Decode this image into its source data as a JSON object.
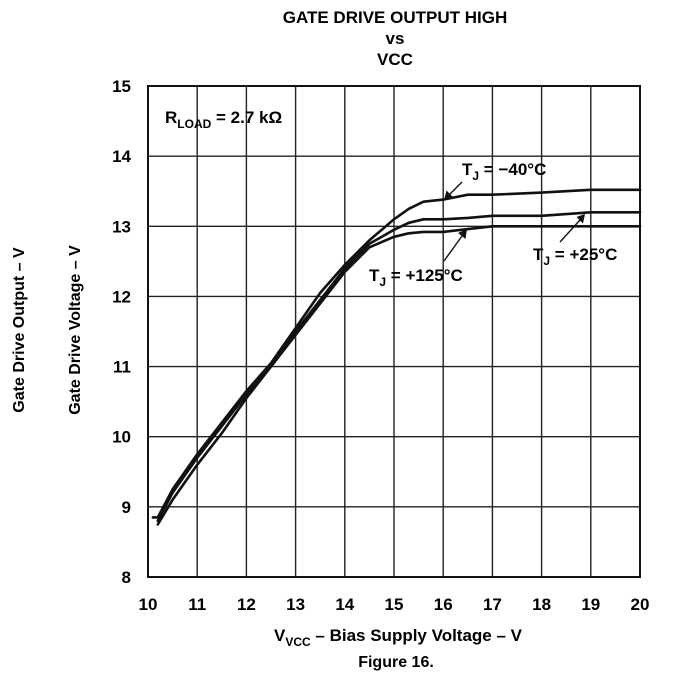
{
  "chart_data": {
    "type": "line",
    "title_lines": [
      "GATE DRIVE OUTPUT HIGH",
      "vs",
      "VCC"
    ],
    "xlabel": {
      "main": "V",
      "sub": "VCC",
      "rest": " – Bias Supply Voltage – V"
    },
    "ylabel_inner": "Gate Drive Voltage – V",
    "ylabel_outer": "Gate Drive Output – V",
    "caption": "Figure 16.",
    "xlim": [
      10,
      20
    ],
    "ylim": [
      8,
      15
    ],
    "xticks": [
      10,
      11,
      12,
      13,
      14,
      15,
      16,
      17,
      18,
      19,
      20
    ],
    "yticks": [
      8,
      9,
      10,
      11,
      12,
      13,
      14,
      15
    ],
    "grid": true,
    "condition": {
      "main": "R",
      "sub": "LOAD",
      "rest": " = 2.7 kΩ"
    },
    "series": [
      {
        "name": "T_J = −40°C",
        "label": {
          "main": "T",
          "sub": "J",
          "rest": " = −40°C"
        },
        "x": [
          10.1,
          10.2,
          10.5,
          11,
          11.5,
          12,
          12.5,
          13,
          13.5,
          14,
          14.5,
          15,
          15.3,
          15.6,
          16,
          16.5,
          17,
          18,
          19,
          20
        ],
        "y": [
          8.85,
          8.85,
          9.25,
          9.75,
          10.2,
          10.65,
          11.05,
          11.55,
          12.05,
          12.45,
          12.8,
          13.1,
          13.25,
          13.35,
          13.38,
          13.45,
          13.45,
          13.48,
          13.52,
          13.52
        ]
      },
      {
        "name": "T_J = +25°C",
        "label": {
          "main": "T",
          "sub": "J",
          "rest": " = +25°C"
        },
        "x": [
          10.2,
          10.5,
          11,
          11.5,
          12,
          12.5,
          13,
          13.5,
          14,
          14.5,
          15,
          15.3,
          15.6,
          16,
          16.5,
          17,
          18,
          19,
          20
        ],
        "y": [
          8.8,
          9.2,
          9.7,
          10.15,
          10.6,
          11.0,
          11.5,
          11.95,
          12.4,
          12.75,
          12.95,
          13.05,
          13.1,
          13.1,
          13.12,
          13.15,
          13.15,
          13.2,
          13.2
        ]
      },
      {
        "name": "T_J = +125°C",
        "label": {
          "main": "T",
          "sub": "J",
          "rest": " = +125°C"
        },
        "x": [
          10.2,
          10.5,
          11,
          11.5,
          12,
          12.5,
          13,
          13.5,
          14,
          14.5,
          15,
          15.3,
          15.6,
          16,
          16.5,
          17,
          18,
          19,
          20
        ],
        "y": [
          8.75,
          9.1,
          9.6,
          10.05,
          10.55,
          11.0,
          11.45,
          11.9,
          12.35,
          12.7,
          12.85,
          12.9,
          12.92,
          12.92,
          12.96,
          13.0,
          13.0,
          13.0,
          13.0
        ]
      }
    ]
  }
}
